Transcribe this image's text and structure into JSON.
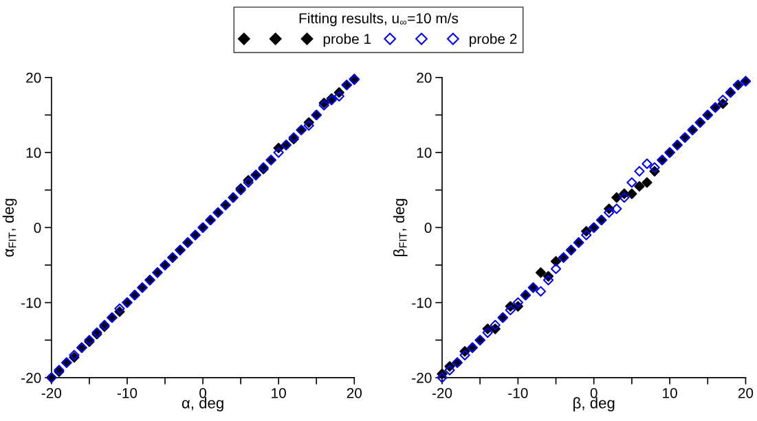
{
  "chart_data": [
    {
      "type": "scatter",
      "xlabel": "α, deg",
      "ylabel": "α$_{FIT}$, deg",
      "legend_title": "Fitting results, u$_{∞}$=10 m/s",
      "legend": "top",
      "marker": "diamond",
      "x": [
        -20,
        -19,
        -18,
        -17,
        -16,
        -15,
        -14,
        -13,
        -12,
        -11,
        -10,
        -9,
        -8,
        -7,
        -6,
        -5,
        -4,
        -3,
        -2,
        -1,
        0,
        1,
        2,
        3,
        4,
        5,
        6,
        7,
        8,
        9,
        10,
        11,
        12,
        13,
        14,
        15,
        16,
        17,
        18,
        19,
        20
      ],
      "xlim": [
        -20,
        20
      ],
      "ylim": [
        -20,
        20
      ],
      "xticks": [
        -20,
        {
          "value": -15,
          "label": null
        },
        -10,
        {
          "value": -5,
          "label": null
        },
        0,
        {
          "value": 5,
          "label": null
        },
        10,
        {
          "value": 15,
          "label": null
        },
        20
      ],
      "yticks": [
        -20,
        {
          "value": -15,
          "label": null
        },
        -10,
        {
          "value": -5,
          "label": null
        },
        0,
        {
          "value": 5,
          "label": null
        },
        10,
        {
          "value": 15,
          "label": null
        },
        20
      ],
      "series": [
        {
          "name": "probe 1",
          "color": "#000000",
          "values": [
            -20,
            -19.2,
            -18,
            -17.3,
            -16,
            -15.2,
            -14.2,
            -13.2,
            -12,
            -11.2,
            -10,
            -9,
            -8,
            -7,
            -6,
            -5,
            -4,
            -3,
            -2,
            -1,
            0,
            1,
            2,
            3,
            4,
            5.2,
            6.3,
            7,
            7.8,
            9,
            10.6,
            11,
            11.8,
            13,
            14,
            15,
            16.6,
            17.2,
            18,
            19,
            19.8
          ]
        },
        {
          "name": "probe 2",
          "color": "#0000ff",
          "values": [
            -20,
            -19,
            -18,
            -17,
            -16,
            -15,
            -14,
            -13,
            -12,
            -10.8,
            -10,
            -9,
            -8,
            -7,
            -6,
            -5,
            -4,
            -3,
            -2,
            -1,
            0,
            1,
            2,
            3,
            4,
            5,
            6,
            7,
            8,
            9,
            10,
            11,
            12,
            13,
            13.6,
            15,
            16.3,
            17,
            17.5,
            19,
            19.7
          ]
        }
      ]
    },
    {
      "type": "scatter",
      "xlabel": "β, deg",
      "ylabel": "β$_{FIT}$, deg",
      "marker": "diamond",
      "x": [
        -20,
        -19,
        -18,
        -17,
        -16,
        -15,
        -14,
        -13,
        -12,
        -11,
        -10,
        -9,
        -8,
        -7,
        -6,
        -5,
        -4,
        -3,
        -2,
        -1,
        0,
        1,
        2,
        3,
        4,
        5,
        6,
        7,
        8,
        9,
        10,
        11,
        12,
        13,
        14,
        15,
        16,
        17,
        18,
        19,
        20
      ],
      "xlim": [
        -20,
        20
      ],
      "ylim": [
        -20,
        20
      ],
      "xticks": [
        -20,
        {
          "value": -15,
          "label": null
        },
        -10,
        {
          "value": -5,
          "label": null
        },
        0,
        {
          "value": 5,
          "label": null
        },
        10,
        {
          "value": 15,
          "label": null
        },
        20
      ],
      "yticks": [
        -20,
        {
          "value": -15,
          "label": null
        },
        -10,
        {
          "value": -5,
          "label": null
        },
        0,
        {
          "value": 5,
          "label": null
        },
        10,
        {
          "value": 15,
          "label": null
        },
        20
      ],
      "series": [
        {
          "color": "#000000",
          "values": [
            -19.5,
            -18.5,
            -18,
            -16.5,
            -16,
            -15,
            -13.5,
            -13.5,
            -12,
            -10.5,
            -10.5,
            -9,
            -8,
            -6,
            -6.5,
            -4.5,
            -4,
            -3,
            -2,
            -0.5,
            0,
            1,
            2.5,
            4,
            4.5,
            4.5,
            5.5,
            6,
            7.5,
            9,
            10,
            11,
            12,
            13,
            14,
            15,
            16,
            16.5,
            18,
            19,
            19.5
          ]
        },
        {
          "color": "#0000ff",
          "values": [
            -20,
            -19,
            -18,
            -17,
            -16,
            -15,
            -14,
            -13,
            -12,
            -11,
            -10,
            -9,
            -8,
            -8.5,
            -7,
            -5.5,
            -4,
            -3,
            -2,
            -1,
            0,
            1,
            2,
            2.5,
            4,
            6,
            7.5,
            8.5,
            8,
            9,
            10,
            11,
            12,
            13,
            14,
            15,
            16,
            17,
            18,
            19,
            19.5
          ]
        }
      ]
    }
  ]
}
